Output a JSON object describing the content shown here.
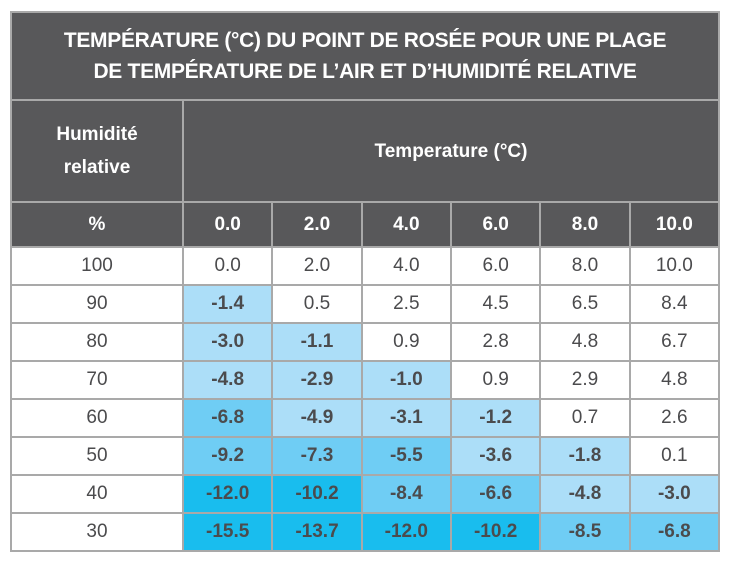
{
  "title": {
    "line1": "TEMPÉRATURE (°C) DU POINT DE ROSÉE POUR UNE PLAGE",
    "line2": "DE TEMPÉRATURE DE L’AIR ET D’HUMIDITÉ RELATIVE"
  },
  "header": {
    "row_label_line1": "Humidité",
    "row_label_line2": "relative",
    "col_group_label": "Temperature (°C)",
    "unit_label": "%",
    "columns": [
      "0.0",
      "2.0",
      "4.0",
      "6.0",
      "8.0",
      "10.0"
    ]
  },
  "colors": {
    "header_bg": "#58585a",
    "border": "#a9a9a9",
    "text": "#4b4b4d",
    "tier1_light_blue": "#acdef8",
    "tier2_mid_blue": "#6fcdf4",
    "tier3_dark_blue": "#19bdee"
  },
  "rows": [
    {
      "humidity": "100",
      "values": [
        "0.0",
        "2.0",
        "4.0",
        "6.0",
        "8.0",
        "10.0"
      ]
    },
    {
      "humidity": "90",
      "values": [
        "-1.4",
        "0.5",
        "2.5",
        "4.5",
        "6.5",
        "8.4"
      ]
    },
    {
      "humidity": "80",
      "values": [
        "-3.0",
        "-1.1",
        "0.9",
        "2.8",
        "4.8",
        "6.7"
      ]
    },
    {
      "humidity": "70",
      "values": [
        "-4.8",
        "-2.9",
        "-1.0",
        "0.9",
        "2.9",
        "4.8"
      ]
    },
    {
      "humidity": "60",
      "values": [
        "-6.8",
        "-4.9",
        "-3.1",
        "-1.2",
        "0.7",
        "2.6"
      ]
    },
    {
      "humidity": "50",
      "values": [
        "-9.2",
        "-7.3",
        "-5.5",
        "-3.6",
        "-1.8",
        "0.1"
      ]
    },
    {
      "humidity": "40",
      "values": [
        "-12.0",
        "-10.2",
        "-8.4",
        "-6.6",
        "-4.8",
        "-3.0"
      ]
    },
    {
      "humidity": "30",
      "values": [
        "-15.5",
        "-13.7",
        "-12.0",
        "-10.2",
        "-8.5",
        "-6.8"
      ]
    }
  ],
  "chart_data": {
    "type": "table",
    "title": "TEMPÉRATURE (°C) DU POINT DE ROSÉE POUR UNE PLAGE DE TEMPÉRATURE DE L’AIR ET D’HUMIDITÉ RELATIVE",
    "xlabel": "Temperature (°C)",
    "ylabel": "Humidité relative (%)",
    "categories": [
      "0.0",
      "2.0",
      "4.0",
      "6.0",
      "8.0",
      "10.0"
    ],
    "series": [
      {
        "name": "100",
        "values": [
          0.0,
          2.0,
          4.0,
          6.0,
          8.0,
          10.0
        ]
      },
      {
        "name": "90",
        "values": [
          -1.4,
          0.5,
          2.5,
          4.5,
          6.5,
          8.4
        ]
      },
      {
        "name": "80",
        "values": [
          -3.0,
          -1.1,
          0.9,
          2.8,
          4.8,
          6.7
        ]
      },
      {
        "name": "70",
        "values": [
          -4.8,
          -2.9,
          -1.0,
          0.9,
          2.9,
          4.8
        ]
      },
      {
        "name": "60",
        "values": [
          -6.8,
          -4.9,
          -3.1,
          -1.2,
          0.7,
          2.6
        ]
      },
      {
        "name": "50",
        "values": [
          -9.2,
          -7.3,
          -5.5,
          -3.6,
          -1.8,
          0.1
        ]
      },
      {
        "name": "40",
        "values": [
          -12.0,
          -10.2,
          -8.4,
          -6.6,
          -4.8,
          -3.0
        ]
      },
      {
        "name": "30",
        "values": [
          -15.5,
          -13.7,
          -12.0,
          -10.2,
          -8.5,
          -6.8
        ]
      }
    ]
  }
}
